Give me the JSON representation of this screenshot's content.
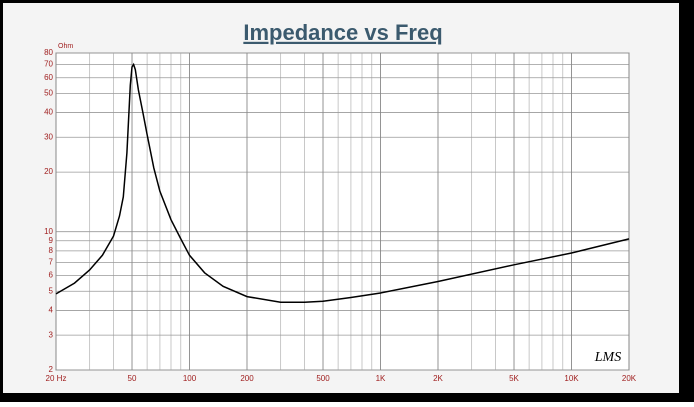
{
  "chart_data": {
    "type": "line",
    "title": "Impedance vs Freq",
    "y_unit": "Ohm",
    "annotation": "LMS",
    "xscale": "log",
    "yscale": "log",
    "grid": true,
    "xlim": [
      20,
      20000
    ],
    "ylim": [
      2,
      80
    ],
    "xticks": [
      {
        "value": 20,
        "label": "20 Hz"
      },
      50,
      100,
      200,
      500,
      {
        "value": 1000,
        "label": "1K"
      },
      {
        "value": 2000,
        "label": "2K"
      },
      {
        "value": 5000,
        "label": "5K"
      },
      {
        "value": 10000,
        "label": "10K"
      },
      {
        "value": 20000,
        "label": "20K"
      }
    ],
    "x_gridlines": [
      30,
      40,
      60,
      70,
      80,
      90,
      300,
      400,
      600,
      700,
      800,
      900,
      3000,
      4000,
      6000,
      7000,
      8000,
      9000
    ],
    "yticks": [
      2,
      3,
      4,
      5,
      6,
      7,
      8,
      9,
      10,
      20,
      30,
      40,
      50,
      60,
      70,
      80
    ],
    "series": [
      {
        "color": "#000000",
        "x": [
          20,
          25,
          30,
          35,
          40,
          43,
          45,
          47,
          49,
          50,
          51,
          52,
          54,
          57,
          60,
          65,
          70,
          80,
          90,
          100,
          120,
          150,
          200,
          300,
          400,
          500,
          700,
          1000,
          2000,
          5000,
          10000,
          20000
        ],
        "values": [
          4.85,
          5.5,
          6.4,
          7.6,
          9.5,
          12,
          15,
          25,
          55,
          68,
          70,
          66,
          52,
          40,
          31,
          21,
          16,
          11.5,
          9.2,
          7.6,
          6.2,
          5.3,
          4.7,
          4.4,
          4.4,
          4.45,
          4.65,
          4.9,
          5.6,
          6.8,
          7.8,
          9.2
        ]
      }
    ]
  }
}
